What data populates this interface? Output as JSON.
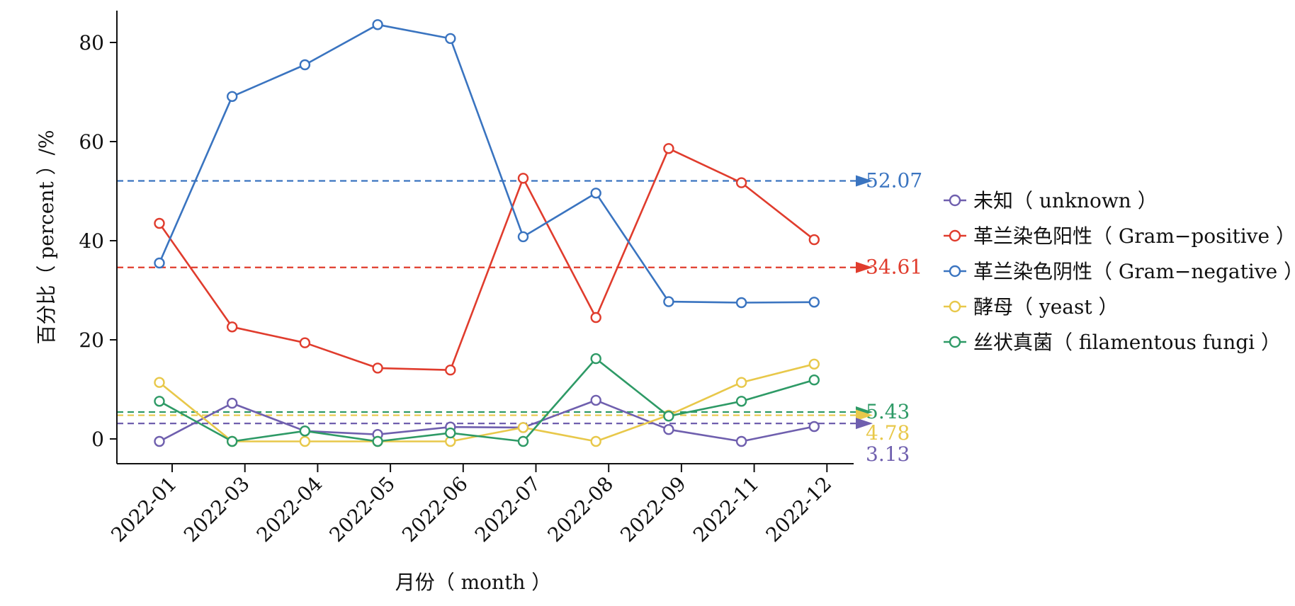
{
  "chart_data": {
    "type": "line",
    "categories": [
      "2022-01",
      "2022-03",
      "2022-04",
      "2022-05",
      "2022-06",
      "2022-07",
      "2022-08",
      "2022-09",
      "2022-11",
      "2022-12"
    ],
    "series": [
      {
        "name": "未知（unknown）",
        "legend": "未知（ unknown ）",
        "color": "#6f5fae",
        "values": [
          -0.5,
          7.2,
          1.6,
          0.9,
          2.4,
          2.3,
          7.8,
          1.9,
          -0.5,
          2.5
        ]
      },
      {
        "name": "革兰染色阳性（Gram-positive）",
        "legend": "革兰染色阳性（ Gram−positive ）",
        "color": "#e03c2d",
        "values": [
          43.5,
          22.6,
          19.4,
          14.3,
          13.9,
          52.6,
          24.5,
          58.6,
          51.7,
          40.2
        ]
      },
      {
        "name": "革兰染色阴性（Gram-negative）",
        "legend": "革兰染色阴性（ Gram−negative ）",
        "color": "#3a74c0",
        "values": [
          35.5,
          69.1,
          75.5,
          83.6,
          80.8,
          40.8,
          49.6,
          27.7,
          27.5,
          27.6
        ]
      },
      {
        "name": "酵母（yeast）",
        "legend": "酵母（ yeast ）",
        "color": "#e8c84a",
        "values": [
          11.4,
          -0.5,
          -0.5,
          -0.5,
          -0.5,
          2.3,
          -0.5,
          4.8,
          11.4,
          15.1
        ]
      },
      {
        "name": "丝状真菌（filamentous fungi）",
        "legend": "丝状真菌（ filamentous fungi ）",
        "color": "#2e9a66",
        "values": [
          7.6,
          -0.5,
          1.6,
          -0.5,
          1.2,
          -0.5,
          16.2,
          4.6,
          7.6,
          11.9
        ]
      }
    ],
    "reference_lines": [
      {
        "series": "革兰染色阴性（Gram-negative）",
        "value": 52.07,
        "label": "52.07",
        "color": "#3a74c0"
      },
      {
        "series": "革兰染色阳性（Gram-positive）",
        "value": 34.61,
        "label": "34.61",
        "color": "#e03c2d"
      },
      {
        "series": "丝状真菌（filamentous fungi）",
        "value": 5.43,
        "label": "5.43",
        "color": "#2e9a66"
      },
      {
        "series": "酵母（yeast）",
        "value": 4.78,
        "label": "4.78",
        "color": "#e8c84a"
      },
      {
        "series": "未知（unknown）",
        "value": 3.13,
        "label": "3.13",
        "color": "#6f5fae"
      }
    ],
    "xlabel": "月份（ month ）",
    "ylabel": "百分比（ percent ）/%",
    "yticks": [
      0,
      20,
      40,
      60,
      80
    ],
    "ylim": [
      -4.5,
      86.4
    ],
    "legend_position": "right",
    "grid": false
  }
}
